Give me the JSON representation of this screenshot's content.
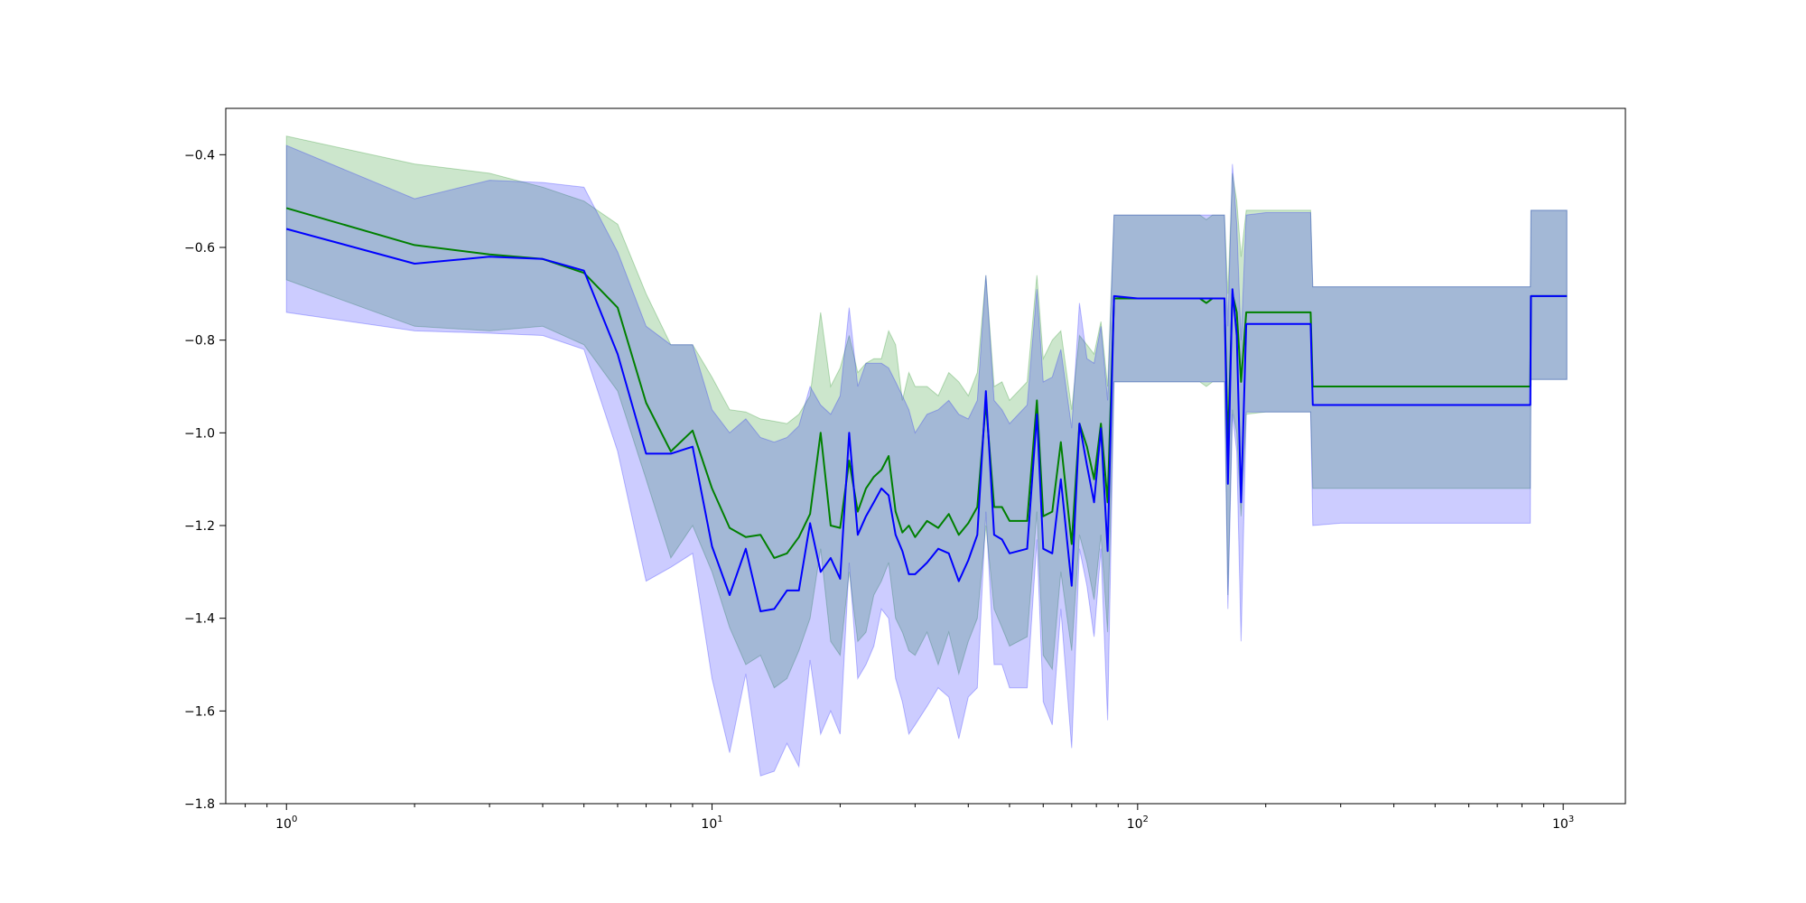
{
  "chart_data": {
    "type": "line",
    "xscale": "log",
    "xlim": [
      0.72,
      1400
    ],
    "ylim": [
      -1.8,
      -0.3
    ],
    "x_ticks": [
      {
        "value": 1,
        "base": "10",
        "exp": "0"
      },
      {
        "value": 10,
        "base": "10",
        "exp": "1"
      },
      {
        "value": 100,
        "base": "10",
        "exp": "2"
      },
      {
        "value": 1000,
        "base": "10",
        "exp": "3"
      }
    ],
    "y_ticks": [
      {
        "value": -1.8,
        "label": "−1.8"
      },
      {
        "value": -1.6,
        "label": "−1.6"
      },
      {
        "value": -1.4,
        "label": "−1.4"
      },
      {
        "value": -1.2,
        "label": "−1.2"
      },
      {
        "value": -1.0,
        "label": "−1.0"
      },
      {
        "value": -0.8,
        "label": "−0.8"
      },
      {
        "value": -0.6,
        "label": "−0.6"
      },
      {
        "value": -0.4,
        "label": "−0.4"
      }
    ],
    "series": [
      {
        "color": "#008000",
        "fill_color": "#008000",
        "fill_opacity": 0.2,
        "points": [
          [
            1,
            -0.515,
            -0.36,
            -0.67
          ],
          [
            2,
            -0.595,
            -0.42,
            -0.77
          ],
          [
            3,
            -0.615,
            -0.44,
            -0.78
          ],
          [
            4,
            -0.625,
            -0.47,
            -0.77
          ],
          [
            5,
            -0.655,
            -0.5,
            -0.81
          ],
          [
            6,
            -0.73,
            -0.55,
            -0.91
          ],
          [
            7,
            -0.935,
            -0.7,
            -1.1
          ],
          [
            8,
            -1.04,
            -0.81,
            -1.27
          ],
          [
            9,
            -0.995,
            -0.81,
            -1.2
          ],
          [
            10,
            -1.12,
            -0.88,
            -1.3
          ],
          [
            11,
            -1.205,
            -0.95,
            -1.42
          ],
          [
            12,
            -1.225,
            -0.955,
            -1.5
          ],
          [
            13,
            -1.22,
            -0.97,
            -1.48
          ],
          [
            14,
            -1.27,
            -0.975,
            -1.55
          ],
          [
            15,
            -1.26,
            -0.98,
            -1.53
          ],
          [
            16,
            -1.225,
            -0.96,
            -1.47
          ],
          [
            17,
            -1.175,
            -0.92,
            -1.4
          ],
          [
            18,
            -1.0,
            -0.74,
            -1.25
          ],
          [
            19,
            -1.2,
            -0.9,
            -1.45
          ],
          [
            20,
            -1.205,
            -0.86,
            -1.48
          ],
          [
            21,
            -1.06,
            -0.79,
            -1.3
          ],
          [
            22,
            -1.17,
            -0.87,
            -1.45
          ],
          [
            23,
            -1.12,
            -0.85,
            -1.43
          ],
          [
            24,
            -1.095,
            -0.84,
            -1.35
          ],
          [
            25,
            -1.08,
            -0.84,
            -1.32
          ],
          [
            26,
            -1.05,
            -0.78,
            -1.28
          ],
          [
            27,
            -1.17,
            -0.81,
            -1.4
          ],
          [
            28,
            -1.215,
            -0.93,
            -1.43
          ],
          [
            29,
            -1.2,
            -0.87,
            -1.47
          ],
          [
            30,
            -1.225,
            -0.9,
            -1.48
          ],
          [
            32,
            -1.19,
            -0.9,
            -1.43
          ],
          [
            34,
            -1.205,
            -0.92,
            -1.5
          ],
          [
            36,
            -1.175,
            -0.87,
            -1.43
          ],
          [
            38,
            -1.22,
            -0.89,
            -1.52
          ],
          [
            40,
            -1.195,
            -0.92,
            -1.45
          ],
          [
            42,
            -1.16,
            -0.87,
            -1.4
          ],
          [
            44,
            -0.935,
            -0.66,
            -1.2
          ],
          [
            46,
            -1.16,
            -0.9,
            -1.38
          ],
          [
            48,
            -1.16,
            -0.89,
            -1.42
          ],
          [
            50,
            -1.19,
            -0.93,
            -1.46
          ],
          [
            55,
            -1.19,
            -0.89,
            -1.44
          ],
          [
            58,
            -0.93,
            -0.66,
            -1.17
          ],
          [
            60,
            -1.18,
            -0.84,
            -1.48
          ],
          [
            63,
            -1.17,
            -0.8,
            -1.51
          ],
          [
            66,
            -1.02,
            -0.78,
            -1.3
          ],
          [
            70,
            -1.24,
            -0.95,
            -1.47
          ],
          [
            73,
            -0.98,
            -0.79,
            -1.22
          ],
          [
            76,
            -1.03,
            -0.81,
            -1.28
          ],
          [
            79,
            -1.1,
            -0.83,
            -1.36
          ],
          [
            82,
            -0.98,
            -0.76,
            -1.22
          ],
          [
            85,
            -1.15,
            -0.9,
            -1.43
          ],
          [
            88,
            -0.71,
            -0.53,
            -0.89
          ],
          [
            100,
            -0.71,
            -0.53,
            -0.89
          ],
          [
            120,
            -0.71,
            -0.53,
            -0.89
          ],
          [
            140,
            -0.71,
            -0.53,
            -0.89
          ],
          [
            145,
            -0.72,
            -0.54,
            -0.9
          ],
          [
            150,
            -0.71,
            -0.53,
            -0.89
          ],
          [
            160,
            -0.71,
            -0.53,
            -0.89
          ],
          [
            163,
            -1.03,
            -0.7,
            -1.35
          ],
          [
            167,
            -0.7,
            -0.44,
            -0.95
          ],
          [
            171,
            -0.74,
            -0.5,
            -1.0
          ],
          [
            175,
            -0.89,
            -0.62,
            -1.18
          ],
          [
            180,
            -0.74,
            -0.52,
            -0.96
          ],
          [
            200,
            -0.74,
            -0.52,
            -0.955
          ],
          [
            255,
            -0.74,
            -0.52,
            -0.955
          ],
          [
            258,
            -0.9,
            -0.685,
            -1.12
          ],
          [
            300,
            -0.9,
            -0.685,
            -1.12
          ],
          [
            500,
            -0.9,
            -0.685,
            -1.12
          ],
          [
            837,
            -0.9,
            -0.685,
            -1.12
          ],
          [
            840,
            -0.705,
            -0.52,
            -0.885
          ],
          [
            1020,
            -0.705,
            -0.52,
            -0.885
          ]
        ]
      },
      {
        "color": "#0000ff",
        "fill_color": "#0000ff",
        "fill_opacity": 0.2,
        "points": [
          [
            1,
            -0.56,
            -0.38,
            -0.74
          ],
          [
            2,
            -0.635,
            -0.495,
            -0.78
          ],
          [
            3,
            -0.62,
            -0.455,
            -0.785
          ],
          [
            4,
            -0.625,
            -0.46,
            -0.79
          ],
          [
            5,
            -0.65,
            -0.47,
            -0.82
          ],
          [
            6,
            -0.83,
            -0.61,
            -1.04
          ],
          [
            7,
            -1.045,
            -0.77,
            -1.32
          ],
          [
            8,
            -1.045,
            -0.81,
            -1.29
          ],
          [
            9,
            -1.03,
            -0.81,
            -1.26
          ],
          [
            10,
            -1.245,
            -0.95,
            -1.53
          ],
          [
            11,
            -1.35,
            -1.0,
            -1.69
          ],
          [
            12,
            -1.25,
            -0.97,
            -1.52
          ],
          [
            13,
            -1.385,
            -1.01,
            -1.74
          ],
          [
            14,
            -1.38,
            -1.02,
            -1.73
          ],
          [
            15,
            -1.34,
            -1.01,
            -1.67
          ],
          [
            16,
            -1.34,
            -0.985,
            -1.72
          ],
          [
            17,
            -1.195,
            -0.9,
            -1.49
          ],
          [
            18,
            -1.3,
            -0.94,
            -1.65
          ],
          [
            19,
            -1.27,
            -0.96,
            -1.6
          ],
          [
            20,
            -1.315,
            -0.92,
            -1.65
          ],
          [
            21,
            -1.0,
            -0.73,
            -1.28
          ],
          [
            22,
            -1.22,
            -0.9,
            -1.53
          ],
          [
            23,
            -1.18,
            -0.85,
            -1.5
          ],
          [
            24,
            -1.15,
            -0.85,
            -1.46
          ],
          [
            25,
            -1.12,
            -0.85,
            -1.38
          ],
          [
            26,
            -1.135,
            -0.86,
            -1.4
          ],
          [
            27,
            -1.22,
            -0.89,
            -1.53
          ],
          [
            28,
            -1.255,
            -0.92,
            -1.58
          ],
          [
            29,
            -1.305,
            -0.95,
            -1.65
          ],
          [
            30,
            -1.305,
            -1.0,
            -1.63
          ],
          [
            32,
            -1.28,
            -0.96,
            -1.59
          ],
          [
            34,
            -1.25,
            -0.95,
            -1.55
          ],
          [
            36,
            -1.26,
            -0.93,
            -1.57
          ],
          [
            38,
            -1.32,
            -0.96,
            -1.66
          ],
          [
            40,
            -1.275,
            -0.97,
            -1.57
          ],
          [
            42,
            -1.22,
            -0.93,
            -1.55
          ],
          [
            44,
            -0.91,
            -0.66,
            -1.17
          ],
          [
            46,
            -1.22,
            -0.93,
            -1.5
          ],
          [
            48,
            -1.23,
            -0.95,
            -1.5
          ],
          [
            50,
            -1.26,
            -0.98,
            -1.55
          ],
          [
            55,
            -1.25,
            -0.94,
            -1.55
          ],
          [
            58,
            -0.96,
            -0.69,
            -1.23
          ],
          [
            60,
            -1.25,
            -0.89,
            -1.58
          ],
          [
            63,
            -1.26,
            -0.88,
            -1.63
          ],
          [
            66,
            -1.1,
            -0.82,
            -1.38
          ],
          [
            70,
            -1.33,
            -0.99,
            -1.68
          ],
          [
            73,
            -0.98,
            -0.72,
            -1.25
          ],
          [
            76,
            -1.07,
            -0.84,
            -1.33
          ],
          [
            79,
            -1.15,
            -0.85,
            -1.44
          ],
          [
            82,
            -0.99,
            -0.77,
            -1.25
          ],
          [
            85,
            -1.255,
            -0.93,
            -1.62
          ],
          [
            88,
            -0.705,
            -0.53,
            -0.89
          ],
          [
            100,
            -0.71,
            -0.53,
            -0.89
          ],
          [
            120,
            -0.71,
            -0.53,
            -0.89
          ],
          [
            140,
            -0.71,
            -0.53,
            -0.89
          ],
          [
            145,
            -0.71,
            -0.53,
            -0.89
          ],
          [
            150,
            -0.71,
            -0.53,
            -0.89
          ],
          [
            160,
            -0.71,
            -0.53,
            -0.89
          ],
          [
            163,
            -1.11,
            -0.77,
            -1.38
          ],
          [
            167,
            -0.69,
            -0.42,
            -0.96
          ],
          [
            171,
            -0.79,
            -0.55,
            -1.04
          ],
          [
            175,
            -1.15,
            -0.8,
            -1.45
          ],
          [
            180,
            -0.765,
            -0.53,
            -0.955
          ],
          [
            200,
            -0.765,
            -0.525,
            -0.955
          ],
          [
            255,
            -0.765,
            -0.525,
            -0.955
          ],
          [
            258,
            -0.94,
            -0.685,
            -1.2
          ],
          [
            300,
            -0.94,
            -0.685,
            -1.195
          ],
          [
            500,
            -0.94,
            -0.685,
            -1.195
          ],
          [
            837,
            -0.94,
            -0.685,
            -1.195
          ],
          [
            840,
            -0.705,
            -0.52,
            -0.885
          ],
          [
            1020,
            -0.705,
            -0.52,
            -0.885
          ]
        ]
      }
    ]
  }
}
